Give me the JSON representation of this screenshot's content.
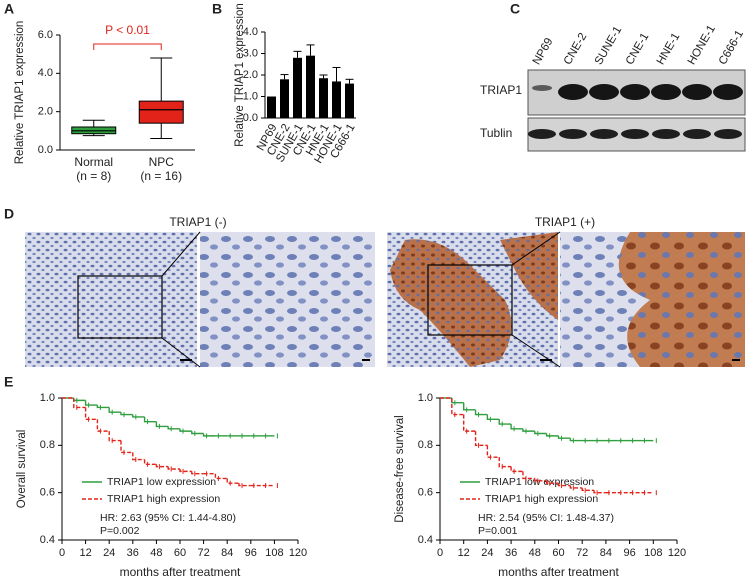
{
  "panel_labels": [
    "A",
    "B",
    "C",
    "D",
    "E"
  ],
  "chart_data": [
    {
      "type": "box",
      "ylabel": "Relative TRIAP1 expression",
      "categories": [
        "Normal",
        "NPC"
      ],
      "group_sizes": [
        "(n = 8)",
        "(n = 16)"
      ],
      "boxes": [
        {
          "min": 0.75,
          "q1": 0.85,
          "median": 1.0,
          "q3": 1.2,
          "max": 1.55,
          "color": "#2e9e3e"
        },
        {
          "min": 0.6,
          "q1": 1.4,
          "median": 2.1,
          "q3": 2.55,
          "max": 4.8,
          "color": "#e2231a"
        }
      ],
      "ylim": [
        0,
        6
      ],
      "yticks": [
        {
          "value": 0,
          "label": "0.0"
        },
        {
          "value": 2,
          "label": "2.0"
        },
        {
          "value": 4,
          "label": "4.0"
        },
        {
          "value": 6,
          "label": "6.0"
        }
      ],
      "annotation": "P < 0.01",
      "annotation_color": "#e2231a"
    },
    {
      "type": "bar",
      "ylabel": "Relative TRIAP1 expression",
      "categories": [
        "NP69",
        "CNE-2",
        "SUNE-1",
        "CNE-1",
        "HNE-1",
        "HONE-1",
        "C666-1"
      ],
      "values": [
        1.0,
        1.8,
        2.8,
        2.9,
        1.85,
        1.7,
        1.6
      ],
      "errors": [
        0,
        0.22,
        0.3,
        0.5,
        0.15,
        0.65,
        0.2
      ],
      "color": "#000000",
      "ylim": [
        0,
        4
      ],
      "yticks": [
        {
          "value": 0,
          "label": "0.0"
        },
        {
          "value": 1,
          "label": "1.0"
        },
        {
          "value": 2,
          "label": "2.0"
        },
        {
          "value": 3,
          "label": "3.0"
        },
        {
          "value": 4,
          "label": "4.0"
        }
      ]
    },
    {
      "type": "step",
      "ylabel": "Overall survival",
      "xlabel": "months after treatment",
      "x": [
        0,
        6,
        12,
        18,
        24,
        30,
        36,
        42,
        48,
        54,
        60,
        66,
        72,
        78,
        84,
        90,
        96,
        102,
        108
      ],
      "series": [
        {
          "name": "TRIAP1 low expression",
          "color": "#2e9e3e",
          "style": "solid",
          "values": [
            1.0,
            0.99,
            0.97,
            0.96,
            0.94,
            0.93,
            0.92,
            0.9,
            0.88,
            0.87,
            0.86,
            0.85,
            0.84,
            0.84,
            0.84,
            0.84,
            0.84,
            0.84,
            0.84
          ]
        },
        {
          "name": "TRIAP1 high expression",
          "color": "#e2231a",
          "style": "dashed",
          "values": [
            1.0,
            0.96,
            0.91,
            0.86,
            0.82,
            0.77,
            0.74,
            0.72,
            0.71,
            0.7,
            0.69,
            0.68,
            0.68,
            0.66,
            0.64,
            0.63,
            0.63,
            0.63,
            0.63
          ]
        }
      ],
      "xlim": [
        0,
        120
      ],
      "xticks": [
        0,
        12,
        24,
        36,
        48,
        60,
        72,
        84,
        96,
        108,
        120
      ],
      "ylim": [
        0.4,
        1.0
      ],
      "yticks": [
        0.4,
        0.6,
        0.8,
        {
          "value": 1.0,
          "label": "1.0"
        }
      ],
      "annotations": [
        "HR: 2.63 (95% CI: 1.44-4.80)",
        "P=0.002"
      ]
    },
    {
      "type": "step",
      "ylabel": "Disease-free survival",
      "xlabel": "months after treatment",
      "x": [
        0,
        6,
        12,
        18,
        24,
        30,
        36,
        42,
        48,
        54,
        60,
        66,
        72,
        78,
        84,
        90,
        96,
        102,
        108
      ],
      "series": [
        {
          "name": "TRIAP1 low expression",
          "color": "#2e9e3e",
          "style": "solid",
          "values": [
            1.0,
            0.98,
            0.95,
            0.93,
            0.91,
            0.89,
            0.87,
            0.86,
            0.85,
            0.84,
            0.83,
            0.82,
            0.82,
            0.82,
            0.82,
            0.82,
            0.82,
            0.82,
            0.82
          ]
        },
        {
          "name": "TRIAP1 high expression",
          "color": "#e2231a",
          "style": "dashed",
          "values": [
            1.0,
            0.93,
            0.86,
            0.8,
            0.75,
            0.71,
            0.69,
            0.66,
            0.65,
            0.64,
            0.63,
            0.62,
            0.61,
            0.6,
            0.6,
            0.6,
            0.6,
            0.6,
            0.6
          ]
        }
      ],
      "xlim": [
        0,
        120
      ],
      "xticks": [
        0,
        12,
        24,
        36,
        48,
        60,
        72,
        84,
        96,
        108,
        120
      ],
      "ylim": [
        0.4,
        1.0
      ],
      "yticks": [
        0.4,
        0.6,
        0.8,
        {
          "value": 1.0,
          "label": "1.0"
        }
      ],
      "annotations": [
        "HR: 2.54 (95% CI: 1.48-4.37)",
        "P=0.001"
      ]
    }
  ],
  "blot": {
    "lanes": [
      "NP69",
      "CNE-2",
      "SUNE-1",
      "CNE-1",
      "HNE-1",
      "HONE-1",
      "C666-1"
    ],
    "rows": [
      "TRIAP1",
      "Tublin"
    ]
  },
  "histology": {
    "titles": [
      "TRIAP1 (-)",
      "TRIAP1 (+)"
    ]
  }
}
